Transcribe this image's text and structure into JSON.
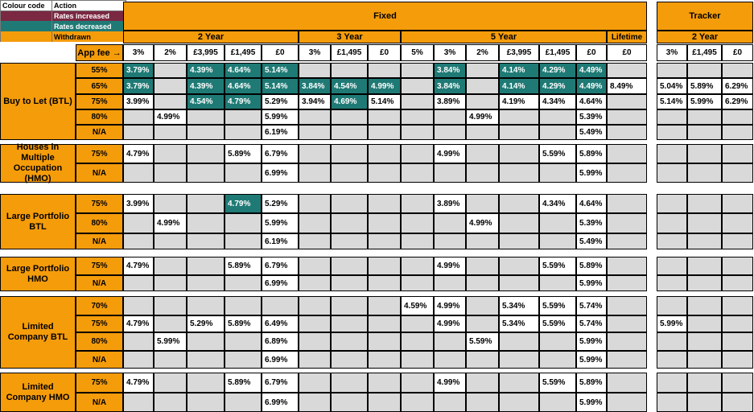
{
  "legend": {
    "col1": "Colour code",
    "col2": "Action",
    "items": [
      {
        "color": "#7B2842",
        "label": "Rates increased"
      },
      {
        "color": "#1F7A75",
        "label": "Rates decreased"
      },
      {
        "color": "#F59C0B",
        "label": "Withdrawn"
      }
    ]
  },
  "headers": {
    "fixed": "Fixed",
    "tracker": "Tracker",
    "two_year": "2 Year",
    "three_year": "3 Year",
    "five_year": "5 Year",
    "lifetime": "Lifetime",
    "tracker_two_year": "2 Year",
    "app_fee": "App fee →"
  },
  "fees": [
    "3%",
    "2%",
    "£3,995",
    "£1,495",
    "£0",
    "3%",
    "£1,495",
    "£0",
    "5%",
    "3%",
    "2%",
    "£3,995",
    "£1,495",
    "£0",
    "£0",
    "3%",
    "£1,495",
    "£0"
  ],
  "groups": [
    {
      "name": "Buy to Let (BTL)",
      "rows": [
        {
          "ltv": "55%",
          "cells": [
            "3.79%",
            "",
            "4.39%",
            "4.64%",
            "5.14%",
            "",
            "",
            "",
            "",
            "3.84%",
            "",
            "4.14%",
            "4.29%",
            "4.49%",
            "",
            "",
            "",
            ""
          ],
          "teal": [
            0,
            2,
            3,
            4,
            9,
            11,
            12,
            13
          ],
          "white": []
        },
        {
          "ltv": "65%",
          "cells": [
            "3.79%",
            "",
            "4.39%",
            "4.64%",
            "5.14%",
            "3.84%",
            "4.54%",
            "4.99%",
            "",
            "3.84%",
            "",
            "4.14%",
            "4.29%",
            "4.49%",
            "8.49%",
            "5.04%",
            "5.89%",
            "6.29%"
          ],
          "teal": [
            0,
            2,
            3,
            4,
            5,
            6,
            7,
            9,
            11,
            12,
            13
          ],
          "white": [
            14,
            15,
            16,
            17
          ]
        },
        {
          "ltv": "75%",
          "cells": [
            "3.99%",
            "",
            "4.54%",
            "4.79%",
            "5.29%",
            "3.94%",
            "4.69%",
            "5.14%",
            "",
            "3.89%",
            "",
            "4.19%",
            "4.34%",
            "4.64%",
            "",
            "5.14%",
            "5.99%",
            "6.29%"
          ],
          "teal": [
            2,
            3,
            6
          ],
          "white": [
            0,
            4,
            5,
            7,
            9,
            11,
            12,
            13,
            15,
            16,
            17
          ]
        },
        {
          "ltv": "80%",
          "cells": [
            "",
            "4.99%",
            "",
            "",
            "5.99%",
            "",
            "",
            "",
            "",
            "",
            "4.99%",
            "",
            "",
            "5.39%",
            "",
            "",
            "",
            ""
          ],
          "teal": [],
          "white": [
            1,
            4,
            10,
            13
          ]
        },
        {
          "ltv": "N/A",
          "cells": [
            "",
            "",
            "",
            "",
            "6.19%",
            "",
            "",
            "",
            "",
            "",
            "",
            "",
            "",
            "5.49%",
            "",
            "",
            "",
            ""
          ],
          "teal": [],
          "white": [
            4,
            13
          ]
        }
      ]
    },
    {
      "name": "Houses in Multiple Occupation (HMO)",
      "rows": [
        {
          "ltv": "75%",
          "cells": [
            "4.79%",
            "",
            "",
            "5.89%",
            "6.79%",
            "",
            "",
            "",
            "",
            "4.99%",
            "",
            "",
            "5.59%",
            "5.89%",
            "",
            "",
            "",
            ""
          ],
          "teal": [],
          "white": [
            0,
            3,
            4,
            9,
            12,
            13
          ]
        },
        {
          "ltv": "N/A",
          "cells": [
            "",
            "",
            "",
            "",
            "6.99%",
            "",
            "",
            "",
            "",
            "",
            "",
            "",
            "",
            "5.99%",
            "",
            "",
            "",
            ""
          ],
          "teal": [],
          "white": [
            4,
            13
          ]
        }
      ]
    },
    {
      "name": "Large Portfolio BTL",
      "rows": [
        {
          "ltv": "75%",
          "cells": [
            "3.99%",
            "",
            "",
            "4.79%",
            "5.29%",
            "",
            "",
            "",
            "",
            "3.89%",
            "",
            "",
            "4.34%",
            "4.64%",
            "",
            "",
            "",
            ""
          ],
          "teal": [
            3
          ],
          "white": [
            0,
            4,
            9,
            12,
            13
          ]
        },
        {
          "ltv": "80%",
          "cells": [
            "",
            "4.99%",
            "",
            "",
            "5.99%",
            "",
            "",
            "",
            "",
            "",
            "4.99%",
            "",
            "",
            "5.39%",
            "",
            "",
            "",
            ""
          ],
          "teal": [],
          "white": [
            1,
            4,
            10,
            13
          ]
        },
        {
          "ltv": "N/A",
          "cells": [
            "",
            "",
            "",
            "",
            "6.19%",
            "",
            "",
            "",
            "",
            "",
            "",
            "",
            "",
            "5.49%",
            "",
            "",
            "",
            ""
          ],
          "teal": [],
          "white": [
            4,
            13
          ]
        }
      ]
    },
    {
      "name": "Large Portfolio HMO",
      "rows": [
        {
          "ltv": "75%",
          "cells": [
            "4.79%",
            "",
            "",
            "5.89%",
            "6.79%",
            "",
            "",
            "",
            "",
            "4.99%",
            "",
            "",
            "5.59%",
            "5.89%",
            "",
            "",
            "",
            ""
          ],
          "teal": [],
          "white": [
            0,
            3,
            4,
            9,
            12,
            13
          ]
        },
        {
          "ltv": "N/A",
          "cells": [
            "",
            "",
            "",
            "",
            "6.99%",
            "",
            "",
            "",
            "",
            "",
            "",
            "",
            "",
            "5.99%",
            "",
            "",
            "",
            ""
          ],
          "teal": [],
          "white": [
            4,
            13
          ]
        }
      ]
    },
    {
      "name": "Limited Company BTL",
      "rows": [
        {
          "ltv": "70%",
          "cells": [
            "",
            "",
            "",
            "",
            "",
            "",
            "",
            "",
            "4.59%",
            "4.99%",
            "",
            "5.34%",
            "5.59%",
            "5.74%",
            "",
            "",
            "",
            ""
          ],
          "teal": [],
          "white": [
            8,
            9,
            11,
            12,
            13
          ]
        },
        {
          "ltv": "75%",
          "cells": [
            "4.79%",
            "",
            "5.29%",
            "5.89%",
            "6.49%",
            "",
            "",
            "",
            "",
            "4.99%",
            "",
            "5.34%",
            "5.59%",
            "5.74%",
            "",
            "5.99%",
            "",
            ""
          ],
          "teal": [],
          "white": [
            0,
            2,
            3,
            4,
            9,
            11,
            12,
            13,
            15
          ]
        },
        {
          "ltv": "80%",
          "cells": [
            "",
            "5.99%",
            "",
            "",
            "6.89%",
            "",
            "",
            "",
            "",
            "",
            "5.59%",
            "",
            "",
            "5.99%",
            "",
            "",
            "",
            ""
          ],
          "teal": [],
          "white": [
            1,
            4,
            10,
            13
          ]
        },
        {
          "ltv": "N/A",
          "cells": [
            "",
            "",
            "",
            "",
            "6.99%",
            "",
            "",
            "",
            "",
            "",
            "",
            "",
            "",
            "5.99%",
            "",
            "",
            "",
            ""
          ],
          "teal": [],
          "white": [
            4,
            13
          ]
        }
      ]
    },
    {
      "name": "Limited Company HMO",
      "rows": [
        {
          "ltv": "75%",
          "cells": [
            "4.79%",
            "",
            "",
            "5.89%",
            "6.79%",
            "",
            "",
            "",
            "",
            "4.99%",
            "",
            "",
            "5.59%",
            "5.89%",
            "",
            "",
            "",
            ""
          ],
          "teal": [],
          "white": [
            0,
            3,
            4,
            9,
            12,
            13
          ]
        },
        {
          "ltv": "N/A",
          "cells": [
            "",
            "",
            "",
            "",
            "6.99%",
            "",
            "",
            "",
            "",
            "",
            "",
            "",
            "",
            "5.99%",
            "",
            "",
            "",
            ""
          ],
          "teal": [],
          "white": [
            4,
            13
          ]
        }
      ]
    }
  ]
}
